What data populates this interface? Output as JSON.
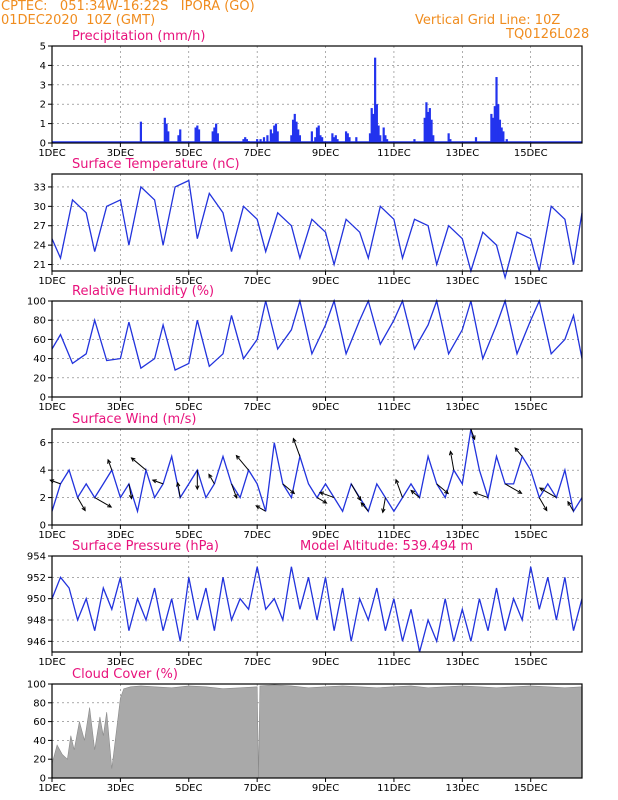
{
  "header": {
    "line1": "CPTEC:   051:34W-16:22S   IPORA (GO)",
    "line2": "01DEC2020  10Z (GMT)",
    "grid_note": "Vertical Grid Line: 10Z",
    "code": "TQ0126L028"
  },
  "colors": {
    "header": "#f08c1e",
    "title": "#e8127c",
    "line": "#2233dd",
    "bar": "#2233ee",
    "cloud": "#a9a9a9",
    "arrow": "#000000"
  },
  "x_ticks": [
    "1DEC",
    "3DEC",
    "5DEC",
    "7DEC",
    "9DEC",
    "11DEC",
    "13DEC",
    "15DEC"
  ],
  "x_tick_days": [
    0,
    2,
    4,
    6,
    8,
    10,
    12,
    14
  ],
  "x_range_days": [
    0,
    15.5
  ],
  "chart_data": [
    {
      "id": "precip",
      "type": "bar",
      "title": "Precipitation (mm/h)",
      "ylim": [
        0,
        5
      ],
      "yticks": [
        0,
        1,
        2,
        3,
        4,
        5
      ],
      "grid": true,
      "x": [
        2.6,
        3.3,
        3.35,
        3.4,
        3.7,
        3.75,
        4.2,
        4.25,
        4.3,
        4.7,
        4.75,
        4.8,
        4.85,
        5.6,
        5.65,
        5.7,
        5.75,
        6.0,
        6.1,
        6.2,
        6.3,
        6.4,
        6.45,
        6.5,
        6.55,
        6.6,
        7.0,
        7.05,
        7.1,
        7.15,
        7.2,
        7.25,
        7.6,
        7.7,
        7.75,
        7.8,
        7.85,
        7.9,
        8.2,
        8.25,
        8.3,
        8.35,
        8.6,
        8.65,
        8.7,
        8.9,
        9.3,
        9.35,
        9.4,
        9.45,
        9.5,
        9.55,
        9.6,
        9.7,
        9.75,
        9.8,
        10.6,
        10.9,
        10.95,
        11.0,
        11.05,
        11.1,
        11.15,
        11.6,
        11.65,
        12.4,
        12.85,
        12.9,
        12.95,
        13.0,
        13.05,
        13.1,
        13.15,
        13.2,
        13.3
      ],
      "values": [
        1.1,
        1.3,
        1.0,
        0.6,
        0.4,
        0.7,
        0.8,
        0.9,
        0.7,
        0.6,
        0.8,
        1.0,
        0.5,
        0.2,
        0.3,
        0.2,
        0.1,
        0.2,
        0.2,
        0.3,
        0.4,
        0.7,
        0.5,
        0.9,
        1.0,
        0.6,
        0.4,
        1.2,
        1.5,
        1.1,
        0.7,
        0.4,
        0.6,
        0.3,
        0.8,
        0.9,
        0.4,
        0.3,
        0.5,
        0.3,
        0.4,
        0.2,
        0.6,
        0.5,
        0.3,
        0.3,
        0.5,
        1.8,
        1.5,
        4.4,
        2.0,
        0.9,
        0.4,
        0.8,
        0.4,
        0.2,
        0.2,
        1.3,
        2.1,
        1.6,
        1.8,
        1.2,
        0.4,
        0.5,
        0.2,
        0.3,
        1.5,
        1.3,
        1.9,
        3.4,
        2.0,
        1.2,
        0.8,
        0.6,
        0.2
      ]
    },
    {
      "id": "temp",
      "type": "line",
      "title": "Surface Temperature (nC)",
      "ylim": [
        20,
        35
      ],
      "yticks": [
        21,
        24,
        27,
        30,
        33
      ],
      "grid": true,
      "x": [
        0,
        0.25,
        0.6,
        1.0,
        1.25,
        1.6,
        2.0,
        2.25,
        2.6,
        3.0,
        3.25,
        3.6,
        4.0,
        4.25,
        4.6,
        5.0,
        5.25,
        5.6,
        6.0,
        6.25,
        6.6,
        7.0,
        7.25,
        7.6,
        8.0,
        8.25,
        8.6,
        9.0,
        9.25,
        9.6,
        10.0,
        10.25,
        10.6,
        11.0,
        11.25,
        11.6,
        12.0,
        12.25,
        12.6,
        13.0,
        13.25,
        13.6,
        14.0,
        14.25,
        14.6,
        15.0,
        15.25,
        15.5
      ],
      "values": [
        25,
        22,
        31,
        29,
        23,
        30,
        31,
        24,
        33,
        31,
        24,
        33,
        34,
        25,
        32,
        29,
        23,
        30,
        28,
        23,
        29,
        27,
        22,
        28,
        26,
        21,
        28,
        26,
        22,
        30,
        28,
        22,
        28,
        27,
        21,
        27,
        25,
        20,
        26,
        24,
        19,
        26,
        25,
        20,
        30,
        28,
        21,
        29
      ]
    },
    {
      "id": "rh",
      "type": "line",
      "title": "Relative Humidity (%)",
      "ylim": [
        0,
        100
      ],
      "yticks": [
        0,
        20,
        40,
        60,
        80,
        100
      ],
      "grid": true,
      "x": [
        0,
        0.25,
        0.6,
        1.0,
        1.25,
        1.6,
        2.0,
        2.25,
        2.6,
        3.0,
        3.25,
        3.6,
        4.0,
        4.25,
        4.6,
        5.0,
        5.25,
        5.6,
        6.0,
        6.25,
        6.6,
        7.0,
        7.25,
        7.6,
        8.0,
        8.25,
        8.6,
        9.0,
        9.25,
        9.6,
        10.0,
        10.25,
        10.6,
        11.0,
        11.25,
        11.6,
        12.0,
        12.25,
        12.6,
        13.0,
        13.25,
        13.6,
        14.0,
        14.25,
        14.6,
        15.0,
        15.25,
        15.5
      ],
      "values": [
        50,
        65,
        35,
        45,
        80,
        38,
        40,
        78,
        30,
        40,
        75,
        28,
        35,
        80,
        32,
        45,
        85,
        40,
        60,
        100,
        50,
        70,
        100,
        45,
        75,
        100,
        45,
        80,
        100,
        55,
        80,
        100,
        50,
        75,
        100,
        45,
        70,
        100,
        40,
        75,
        100,
        45,
        80,
        100,
        45,
        60,
        85,
        40
      ]
    },
    {
      "id": "wind",
      "type": "line",
      "title": "Surface Wind (m/s)",
      "ylim": [
        0,
        7
      ],
      "yticks": [
        0,
        2,
        4,
        6
      ],
      "grid": true,
      "x": [
        0,
        0.25,
        0.5,
        0.75,
        1.0,
        1.25,
        1.5,
        1.75,
        2.0,
        2.25,
        2.5,
        2.75,
        3.0,
        3.25,
        3.5,
        3.75,
        4.0,
        4.25,
        4.5,
        4.75,
        5.0,
        5.25,
        5.5,
        5.75,
        6.0,
        6.25,
        6.5,
        6.75,
        7.0,
        7.25,
        7.5,
        7.75,
        8.0,
        8.25,
        8.5,
        8.75,
        9.0,
        9.25,
        9.5,
        9.75,
        10.0,
        10.25,
        10.5,
        10.75,
        11.0,
        11.25,
        11.5,
        11.75,
        12.0,
        12.25,
        12.5,
        12.75,
        13.0,
        13.25,
        13.5,
        13.75,
        14.0,
        14.25,
        14.5,
        14.75,
        15.0,
        15.25,
        15.5
      ],
      "values": [
        1,
        3,
        4,
        2,
        3,
        2,
        3,
        4,
        2,
        3,
        1,
        4,
        2,
        3,
        5,
        2,
        3,
        4,
        2,
        3,
        5,
        3,
        2,
        4,
        3,
        1,
        6,
        3,
        2,
        5,
        3,
        2,
        3,
        2,
        1,
        3,
        2,
        1,
        3,
        2,
        1,
        2,
        3,
        2,
        5,
        3,
        2,
        4,
        3,
        7,
        4,
        2,
        5,
        3,
        3,
        5,
        4,
        2,
        3,
        2,
        4,
        1,
        2
      ]
    },
    {
      "id": "pressure",
      "type": "line",
      "title": "Surface Pressure (hPa)",
      "annotation": "Model Altitude: 539.494  m",
      "ylim": [
        945,
        954
      ],
      "yticks": [
        946,
        948,
        950,
        952,
        954
      ],
      "grid": true,
      "x": [
        0,
        0.25,
        0.5,
        0.75,
        1.0,
        1.25,
        1.5,
        1.75,
        2.0,
        2.25,
        2.5,
        2.75,
        3.0,
        3.25,
        3.5,
        3.75,
        4.0,
        4.25,
        4.5,
        4.75,
        5.0,
        5.25,
        5.5,
        5.75,
        6.0,
        6.25,
        6.5,
        6.75,
        7.0,
        7.25,
        7.5,
        7.75,
        8.0,
        8.25,
        8.5,
        8.75,
        9.0,
        9.25,
        9.5,
        9.75,
        10.0,
        10.25,
        10.5,
        10.75,
        11.0,
        11.25,
        11.5,
        11.75,
        12.0,
        12.25,
        12.5,
        12.75,
        13.0,
        13.25,
        13.5,
        13.75,
        14.0,
        14.25,
        14.5,
        14.75,
        15.0,
        15.25,
        15.5
      ],
      "values": [
        950,
        952,
        951,
        948,
        950,
        947,
        951,
        949,
        952,
        947,
        950,
        948,
        951,
        947,
        950,
        946,
        952,
        948,
        951,
        947,
        952,
        948,
        950,
        949,
        953,
        949,
        950,
        948,
        953,
        949,
        952,
        948,
        952,
        947,
        951,
        946,
        950,
        948,
        951,
        947,
        950,
        946,
        949,
        945,
        948,
        946,
        950,
        946,
        949,
        946,
        950,
        947,
        951,
        947,
        950,
        948,
        953,
        949,
        952,
        948,
        952,
        947,
        950
      ]
    },
    {
      "id": "cloud",
      "type": "area",
      "title": "Cloud Cover (%)",
      "ylim": [
        0,
        100
      ],
      "yticks": [
        0,
        20,
        40,
        60,
        80,
        100
      ],
      "grid": true,
      "x": [
        0,
        0.15,
        0.3,
        0.45,
        0.55,
        0.65,
        0.8,
        0.95,
        1.1,
        1.25,
        1.4,
        1.5,
        1.6,
        1.75,
        1.9,
        2.0,
        2.1,
        2.3,
        2.6,
        3.0,
        3.5,
        4.0,
        4.5,
        5.0,
        5.5,
        6.0,
        6.04,
        6.08,
        6.5,
        7.0,
        7.5,
        8.0,
        8.5,
        9.0,
        9.5,
        10.0,
        10.5,
        11.0,
        11.5,
        12.0,
        12.5,
        13.0,
        13.5,
        14.0,
        14.5,
        15.0,
        15.5
      ],
      "values": [
        15,
        35,
        25,
        20,
        45,
        30,
        60,
        40,
        75,
        30,
        65,
        45,
        70,
        10,
        55,
        85,
        95,
        97,
        98,
        97,
        96,
        98,
        97,
        95,
        96,
        97,
        0,
        98,
        99,
        98,
        96,
        97,
        98,
        97,
        96,
        97,
        98,
        96,
        97,
        98,
        97,
        96,
        97,
        98,
        97,
        96,
        97
      ]
    }
  ]
}
